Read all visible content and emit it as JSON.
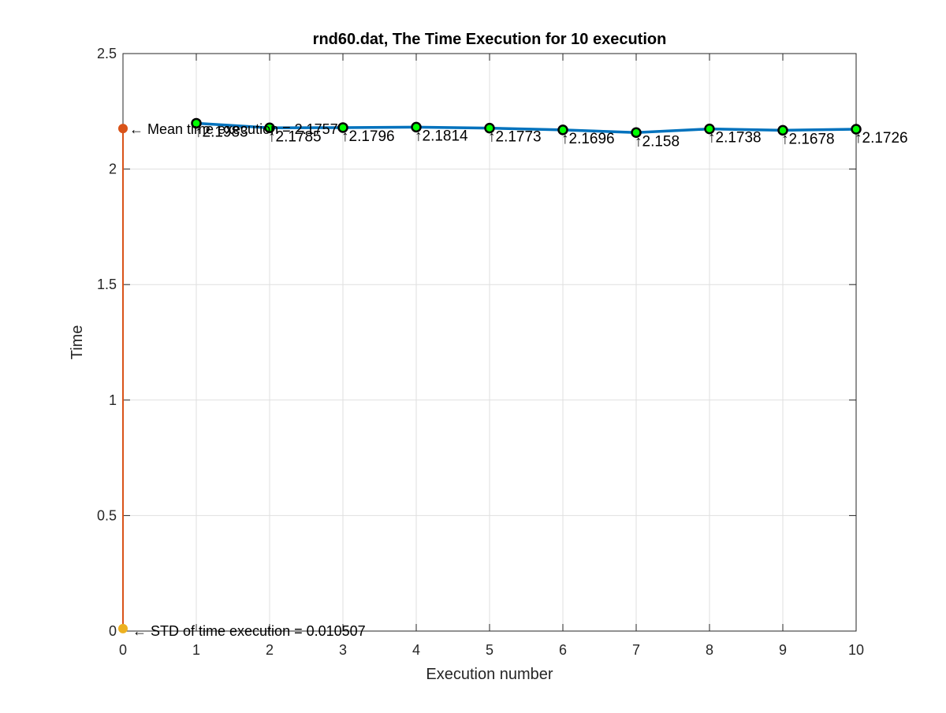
{
  "chart_data": {
    "type": "line",
    "title": "rnd60.dat, The Time Execution for 10 execution",
    "xlabel": "Execution number",
    "ylabel": "Time",
    "xlim": [
      0,
      10
    ],
    "ylim": [
      0,
      2.5
    ],
    "xticks": [
      "0",
      "1",
      "2",
      "3",
      "4",
      "5",
      "6",
      "7",
      "8",
      "9",
      "10"
    ],
    "yticks": [
      "0",
      "0.5",
      "1",
      "1.5",
      "2",
      "2.5"
    ],
    "grid": true,
    "x": [
      1,
      2,
      3,
      4,
      5,
      6,
      7,
      8,
      9,
      10
    ],
    "series": [
      {
        "values": [
          2.1983,
          2.1785,
          2.1796,
          2.1814,
          2.1773,
          2.1696,
          2.158,
          2.1738,
          2.1678,
          2.1726
        ],
        "labels": [
          "2.1983",
          "2.1785",
          "2.1796",
          "2.1814",
          "2.1773",
          "2.1696",
          "2.158",
          "2.1738",
          "2.1678",
          "2.1726"
        ],
        "color": "#0072bd",
        "marker_color": "#00ff00"
      }
    ],
    "mean": {
      "value": 2.1757,
      "label": "← Mean time execution = 2.1757",
      "color": "#d95319"
    },
    "std": {
      "value": 0.010507,
      "label": "← STD of time execution = 0.010507",
      "color": "#edb120"
    }
  }
}
